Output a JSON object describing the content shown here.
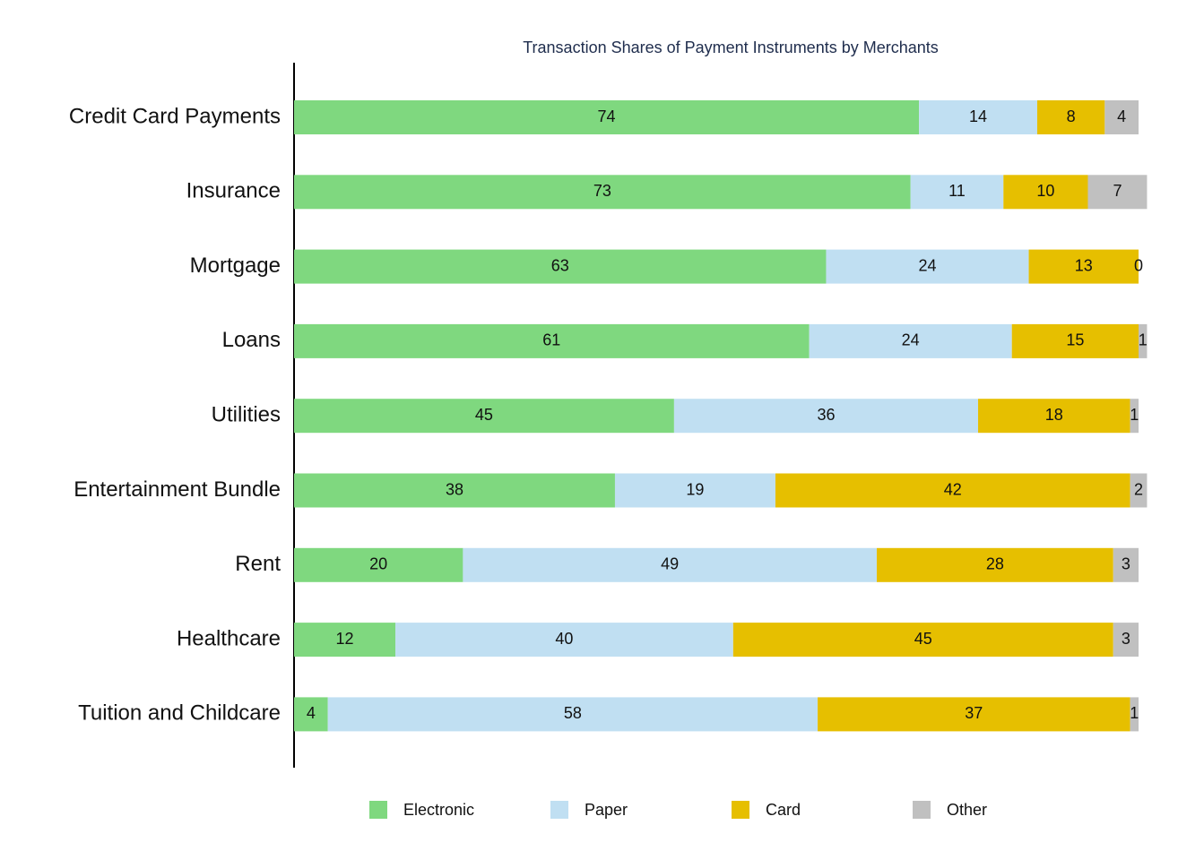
{
  "chart_data": {
    "type": "stacked-bar-horizontal",
    "title": "Transaction Shares of Payment Instruments by Merchants",
    "categories": [
      "Credit Card Payments",
      "Insurance",
      "Mortgage",
      "Loans",
      "Utilities",
      "Entertainment Bundle",
      "Rent",
      "Healthcare",
      "Tuition and Childcare"
    ],
    "series": [
      {
        "name": "Electronic",
        "color": "#7fd87f",
        "values": [
          74,
          73,
          63,
          61,
          45,
          38,
          20,
          12,
          4
        ]
      },
      {
        "name": "Paper",
        "color": "#c0dff2",
        "values": [
          14,
          11,
          24,
          24,
          36,
          19,
          49,
          40,
          58
        ]
      },
      {
        "name": "Card",
        "color": "#e6bf00",
        "values": [
          8,
          10,
          13,
          15,
          18,
          42,
          28,
          45,
          37
        ]
      },
      {
        "name": "Other",
        "color": "#c0c0c0",
        "values": [
          4,
          7,
          0,
          1,
          1,
          2,
          3,
          3,
          1
        ]
      }
    ],
    "xlim": [
      0,
      100
    ],
    "legend": "bottom"
  }
}
